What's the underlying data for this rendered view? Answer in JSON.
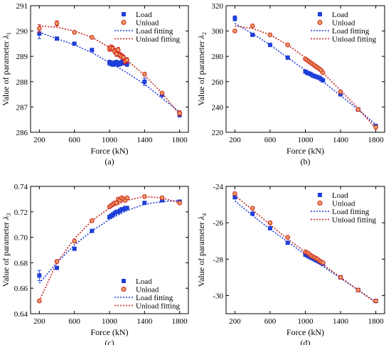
{
  "chart_data": [
    {
      "type": "scatter",
      "panel_label": "(a)",
      "xlabel": "Force (kN)",
      "ylabel_prefix": "Value of parameter ",
      "ylabel_symbol": "λ",
      "ylabel_sub": "1",
      "xlim": [
        100,
        1900
      ],
      "ylim": [
        286,
        291
      ],
      "xticks": [
        200,
        600,
        1000,
        1400,
        1800
      ],
      "yticks": [
        286,
        287,
        288,
        289,
        290,
        291
      ],
      "legend_position": "top-right",
      "legend": [
        "Load",
        "Unload",
        "Load fitting",
        "Unload fitting"
      ],
      "series": [
        {
          "name": "Load",
          "role": "points",
          "color": "#1f3fd8",
          "marker": "square",
          "x": [
            200,
            400,
            600,
            800,
            1000,
            1020,
            1040,
            1060,
            1080,
            1100,
            1120,
            1140,
            1160,
            1180,
            1200,
            1400,
            1600,
            1800
          ],
          "y": [
            289.9,
            289.7,
            289.5,
            289.25,
            288.75,
            288.72,
            288.7,
            288.72,
            288.75,
            288.7,
            288.72,
            288.75,
            288.8,
            288.75,
            288.7,
            288.0,
            287.5,
            286.7
          ],
          "err": [
            0.2,
            0.05,
            0.05,
            0.05,
            0.1,
            0.1,
            0.1,
            0.1,
            0.1,
            0.1,
            0.1,
            0.1,
            0.1,
            0.1,
            0.1,
            0.15,
            0.1,
            0.1
          ]
        },
        {
          "name": "Unload",
          "role": "points",
          "color": "#d01c1c",
          "marker": "circle",
          "x": [
            200,
            400,
            600,
            800,
            1000,
            1020,
            1040,
            1060,
            1080,
            1100,
            1120,
            1140,
            1160,
            1180,
            1200,
            1400,
            1600,
            1800
          ],
          "y": [
            290.1,
            290.3,
            289.95,
            289.75,
            289.3,
            289.35,
            289.3,
            289.2,
            289.1,
            289.25,
            289.05,
            289.0,
            288.95,
            288.8,
            288.85,
            288.3,
            287.55,
            286.75
          ],
          "err": [
            0.15,
            0.1,
            0.05,
            0.05,
            0.1,
            0.1,
            0.1,
            0.1,
            0.1,
            0.1,
            0.1,
            0.1,
            0.1,
            0.1,
            0.1,
            0.05,
            0.05,
            0.1
          ]
        },
        {
          "name": "Load fitting",
          "role": "fit",
          "color": "#1f3fd8",
          "x": [
            200,
            400,
            600,
            800,
            1000,
            1200,
            1400,
            1600,
            1800
          ],
          "y": [
            289.95,
            289.7,
            289.45,
            289.15,
            288.75,
            288.35,
            287.9,
            287.35,
            286.8
          ]
        },
        {
          "name": "Unload fitting",
          "role": "fit",
          "color": "#c0281e",
          "x": [
            200,
            400,
            600,
            800,
            1000,
            1200,
            1400,
            1600,
            1800
          ],
          "y": [
            290.2,
            290.15,
            290.0,
            289.75,
            289.35,
            288.85,
            288.25,
            287.55,
            286.7
          ]
        }
      ]
    },
    {
      "type": "scatter",
      "panel_label": "(b)",
      "xlabel": "Force (kN)",
      "ylabel_prefix": "Value of parameter ",
      "ylabel_symbol": "λ",
      "ylabel_sub": "2",
      "xlim": [
        100,
        1900
      ],
      "ylim": [
        220,
        320
      ],
      "xticks": [
        200,
        600,
        1000,
        1400,
        1800
      ],
      "yticks": [
        220,
        240,
        260,
        280,
        300,
        320
      ],
      "legend_position": "top-right",
      "legend": [
        "Load",
        "Unload",
        "Load fitting",
        "Unload fitting"
      ],
      "series": [
        {
          "name": "Load",
          "role": "points",
          "color": "#1f3fd8",
          "marker": "square",
          "x": [
            200,
            400,
            600,
            800,
            1000,
            1020,
            1040,
            1060,
            1080,
            1100,
            1120,
            1140,
            1160,
            1180,
            1200,
            1400,
            1600,
            1800
          ],
          "y": [
            310,
            297,
            289,
            279,
            268,
            267,
            266.5,
            266,
            265,
            264.5,
            264,
            263.5,
            263,
            262,
            261,
            250,
            238,
            225
          ],
          "err": [
            2,
            1,
            1,
            1,
            1,
            1,
            1,
            1,
            1,
            1,
            1,
            1,
            1,
            1,
            1,
            1,
            1,
            1
          ]
        },
        {
          "name": "Unload",
          "role": "points",
          "color": "#d01c1c",
          "marker": "circle",
          "x": [
            200,
            400,
            600,
            800,
            1000,
            1020,
            1040,
            1060,
            1080,
            1100,
            1120,
            1140,
            1160,
            1180,
            1200,
            1400,
            1600,
            1800
          ],
          "y": [
            300,
            304,
            297,
            289,
            278,
            277,
            276,
            275,
            274,
            273,
            272,
            271,
            270,
            269,
            267,
            252,
            238,
            224
          ],
          "err": [
            1,
            1,
            1,
            1,
            1,
            1,
            1,
            1,
            1,
            1,
            1,
            1,
            1,
            1,
            1,
            1,
            1,
            1
          ]
        },
        {
          "name": "Load fitting",
          "role": "fit",
          "color": "#1f3fd8",
          "x": [
            200,
            400,
            600,
            800,
            1000,
            1200,
            1400,
            1600,
            1800
          ],
          "y": [
            306,
            298,
            289,
            279,
            269,
            260,
            249,
            238,
            226
          ]
        },
        {
          "name": "Unload fitting",
          "role": "fit",
          "color": "#c0281e",
          "x": [
            200,
            400,
            600,
            800,
            1000,
            1200,
            1400,
            1600,
            1800
          ],
          "y": [
            304,
            302,
            297,
            289,
            279,
            267,
            253,
            239,
            223
          ]
        }
      ]
    },
    {
      "type": "scatter",
      "panel_label": "(c)",
      "xlabel": "Force (kN)",
      "ylabel_prefix": "Value of parameter ",
      "ylabel_symbol": "λ",
      "ylabel_sub": "3",
      "xlim": [
        100,
        1900
      ],
      "ylim": [
        0.64,
        0.74
      ],
      "xticks": [
        200,
        600,
        1000,
        1400,
        1800
      ],
      "yticks": [
        0.64,
        0.66,
        0.68,
        0.7,
        0.72,
        0.74
      ],
      "tick_decimals": 2,
      "legend_position": "bottom-right",
      "legend": [
        "Load",
        "Unload",
        "Load fitting",
        "Unload fitting"
      ],
      "series": [
        {
          "name": "Load",
          "role": "points",
          "color": "#1f3fd8",
          "marker": "square",
          "x": [
            200,
            400,
            600,
            800,
            1000,
            1020,
            1040,
            1060,
            1080,
            1100,
            1120,
            1140,
            1160,
            1180,
            1200,
            1400,
            1600,
            1800
          ],
          "y": [
            0.67,
            0.676,
            0.691,
            0.705,
            0.716,
            0.717,
            0.718,
            0.719,
            0.72,
            0.72,
            0.721,
            0.722,
            0.722,
            0.723,
            0.723,
            0.727,
            0.729,
            0.728
          ],
          "err": [
            0.004,
            0.001,
            0.001,
            0.001,
            0.001,
            0.001,
            0.001,
            0.001,
            0.001,
            0.001,
            0.001,
            0.001,
            0.001,
            0.001,
            0.001,
            0.001,
            0.001,
            0.001
          ]
        },
        {
          "name": "Unload",
          "role": "points",
          "color": "#d01c1c",
          "marker": "circle",
          "x": [
            200,
            400,
            600,
            800,
            1000,
            1020,
            1040,
            1060,
            1080,
            1100,
            1120,
            1140,
            1160,
            1180,
            1200,
            1400,
            1600,
            1800
          ],
          "y": [
            0.65,
            0.681,
            0.697,
            0.713,
            0.724,
            0.725,
            0.726,
            0.727,
            0.727,
            0.73,
            0.729,
            0.731,
            0.73,
            0.729,
            0.731,
            0.732,
            0.731,
            0.727
          ],
          "err": [
            0.001,
            0.001,
            0.001,
            0.001,
            0.001,
            0.001,
            0.001,
            0.001,
            0.001,
            0.001,
            0.001,
            0.001,
            0.001,
            0.001,
            0.001,
            0.001,
            0.001,
            0.001
          ]
        },
        {
          "name": "Load fitting",
          "role": "fit",
          "color": "#1f3fd8",
          "x": [
            200,
            400,
            600,
            800,
            1000,
            1200,
            1400,
            1600,
            1800
          ],
          "y": [
            0.664,
            0.68,
            0.694,
            0.705,
            0.714,
            0.721,
            0.726,
            0.728,
            0.729
          ]
        },
        {
          "name": "Unload fitting",
          "role": "fit",
          "color": "#c0281e",
          "x": [
            200,
            400,
            600,
            800,
            1000,
            1200,
            1400,
            1600,
            1800
          ],
          "y": [
            0.65,
            0.68,
            0.699,
            0.713,
            0.723,
            0.729,
            0.732,
            0.731,
            0.727
          ]
        }
      ]
    },
    {
      "type": "scatter",
      "panel_label": "(d)",
      "xlabel": "Force (kN)",
      "ylabel_prefix": "Value of parameter ",
      "ylabel_symbol": "λ",
      "ylabel_sub": "4",
      "xlim": [
        100,
        1900
      ],
      "ylim": [
        -31,
        -24
      ],
      "xticks": [
        200,
        600,
        1000,
        1400,
        1800
      ],
      "yticks": [
        -30,
        -28,
        -26,
        -24
      ],
      "legend_position": "top-right",
      "legend": [
        "Load",
        "Unload",
        "Load fitting",
        "Unload fitting"
      ],
      "series": [
        {
          "name": "Load",
          "role": "points",
          "color": "#1f3fd8",
          "marker": "square",
          "x": [
            200,
            400,
            600,
            800,
            1000,
            1020,
            1040,
            1060,
            1080,
            1100,
            1120,
            1140,
            1160,
            1180,
            1200,
            1400,
            1600,
            1800
          ],
          "y": [
            -24.6,
            -25.5,
            -26.3,
            -27.1,
            -27.75,
            -27.8,
            -27.85,
            -27.9,
            -27.95,
            -28.0,
            -28.05,
            -28.1,
            -28.15,
            -28.2,
            -28.25,
            -29.0,
            -29.7,
            -30.3
          ],
          "err": [
            0.05,
            0.05,
            0.05,
            0.05,
            0.05,
            0.05,
            0.05,
            0.05,
            0.05,
            0.05,
            0.05,
            0.05,
            0.05,
            0.05,
            0.05,
            0.05,
            0.05,
            0.05
          ]
        },
        {
          "name": "Unload",
          "role": "points",
          "color": "#d01c1c",
          "marker": "circle",
          "x": [
            200,
            400,
            600,
            800,
            1000,
            1020,
            1040,
            1060,
            1080,
            1100,
            1120,
            1140,
            1160,
            1180,
            1200,
            1400,
            1600,
            1800
          ],
          "y": [
            -24.4,
            -25.2,
            -26.0,
            -26.8,
            -27.6,
            -27.65,
            -27.7,
            -27.8,
            -27.85,
            -27.9,
            -27.95,
            -28.0,
            -28.1,
            -28.15,
            -28.2,
            -29.0,
            -29.7,
            -30.3
          ],
          "err": [
            0.05,
            0.05,
            0.05,
            0.05,
            0.05,
            0.05,
            0.05,
            0.05,
            0.05,
            0.05,
            0.05,
            0.05,
            0.05,
            0.05,
            0.05,
            0.05,
            0.05,
            0.05
          ]
        },
        {
          "name": "Load fitting",
          "role": "fit",
          "color": "#1f3fd8",
          "x": [
            200,
            400,
            600,
            800,
            1000,
            1200,
            1400,
            1600,
            1800
          ],
          "y": [
            -24.8,
            -25.6,
            -26.35,
            -27.05,
            -27.75,
            -28.4,
            -29.05,
            -29.7,
            -30.35
          ]
        },
        {
          "name": "Unload fitting",
          "role": "fit",
          "color": "#c0281e",
          "x": [
            200,
            400,
            600,
            800,
            1000,
            1200,
            1400,
            1600,
            1800
          ],
          "y": [
            -24.5,
            -25.3,
            -26.1,
            -26.9,
            -27.6,
            -28.3,
            -29.0,
            -29.7,
            -30.4
          ]
        }
      ]
    }
  ]
}
